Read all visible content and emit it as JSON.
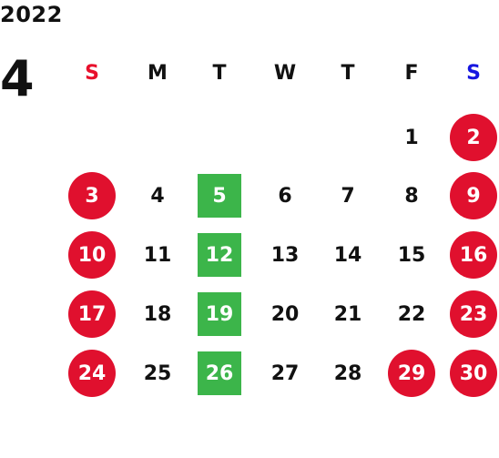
{
  "calendar": {
    "year": "2022",
    "month": "4",
    "weekdays": [
      {
        "label": "S",
        "color": "#e8102c"
      },
      {
        "label": "M",
        "color": "#111111"
      },
      {
        "label": "T",
        "color": "#111111"
      },
      {
        "label": "W",
        "color": "#111111"
      },
      {
        "label": "T",
        "color": "#111111"
      },
      {
        "label": "F",
        "color": "#111111"
      },
      {
        "label": "S",
        "color": "#1616e0"
      }
    ],
    "colors": {
      "text": "#111111",
      "holiday_circle": "#e0102e",
      "marked_square": "#3cb54a"
    },
    "weeks": [
      [
        null,
        null,
        null,
        null,
        null,
        {
          "day": "1"
        },
        {
          "day": "2",
          "style": "holiday"
        }
      ],
      [
        {
          "day": "3",
          "style": "holiday"
        },
        {
          "day": "4"
        },
        {
          "day": "5",
          "style": "closed"
        },
        {
          "day": "6"
        },
        {
          "day": "7"
        },
        {
          "day": "8"
        },
        {
          "day": "9",
          "style": "holiday"
        }
      ],
      [
        {
          "day": "10",
          "style": "holiday"
        },
        {
          "day": "11"
        },
        {
          "day": "12",
          "style": "closed"
        },
        {
          "day": "13"
        },
        {
          "day": "14"
        },
        {
          "day": "15"
        },
        {
          "day": "16",
          "style": "holiday"
        }
      ],
      [
        {
          "day": "17",
          "style": "holiday"
        },
        {
          "day": "18"
        },
        {
          "day": "19",
          "style": "closed"
        },
        {
          "day": "20"
        },
        {
          "day": "21"
        },
        {
          "day": "22"
        },
        {
          "day": "23",
          "style": "holiday"
        }
      ],
      [
        {
          "day": "24",
          "style": "holiday"
        },
        {
          "day": "25"
        },
        {
          "day": "26",
          "style": "closed"
        },
        {
          "day": "27"
        },
        {
          "day": "28"
        },
        {
          "day": "29",
          "style": "holiday"
        },
        {
          "day": "30",
          "style": "holiday"
        }
      ]
    ]
  }
}
